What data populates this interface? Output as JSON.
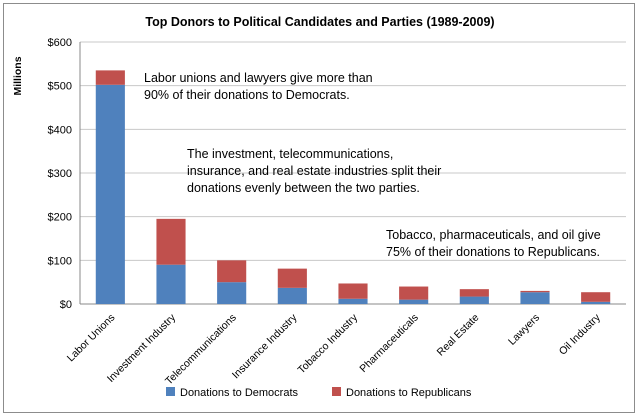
{
  "chart_data": {
    "type": "bar",
    "stacked": true,
    "title": "Top Donors to Political Candidates and Parties (1989-2009)",
    "ylabel": "Millions",
    "xlabel": "",
    "ylim": [
      0,
      600
    ],
    "yticks": [
      0,
      100,
      200,
      300,
      400,
      500,
      600
    ],
    "ytick_labels": [
      "$0",
      "$100",
      "$200",
      "$300",
      "$400",
      "$500",
      "$600"
    ],
    "grid": true,
    "legend_position": "bottom",
    "categories": [
      "Labor Unions",
      "Investment Industry",
      "Telecommunications",
      "Insurance Industry",
      "Tobacco Industry",
      "Pharmaceuticals",
      "Real Estate",
      "Lawyers",
      "Oil Industry"
    ],
    "series": [
      {
        "name": "Donations to Democrats",
        "color": "#4f81bd",
        "values": [
          502,
          90,
          50,
          37,
          12,
          10,
          17,
          27,
          5
        ]
      },
      {
        "name": "Donations to Republicans",
        "color": "#c0504d",
        "values": [
          33,
          105,
          50,
          44,
          35,
          30,
          17,
          3,
          22
        ]
      }
    ],
    "annotations": [
      {
        "lines": [
          "Labor unions and lawyers give more than",
          "90% of their donations to Democrats."
        ]
      },
      {
        "lines": [
          "The investment, telecommunications,",
          "insurance, and real estate  industries split their",
          "donations evenly between the two parties."
        ]
      },
      {
        "lines": [
          "Tobacco, pharmaceuticals, and oil give",
          "75% of their donations to Republicans."
        ]
      }
    ]
  }
}
